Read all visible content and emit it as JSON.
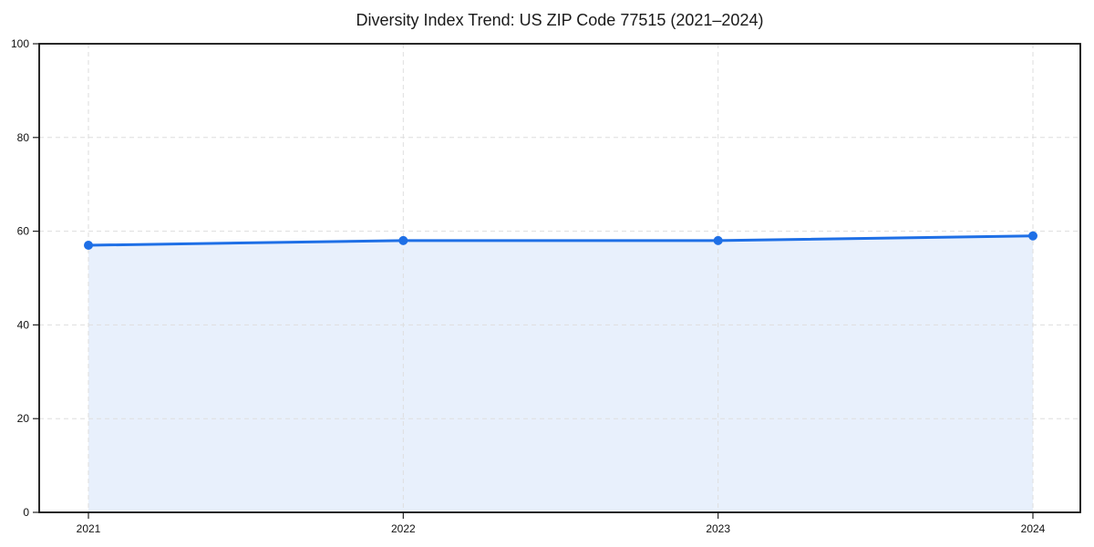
{
  "chart_data": {
    "type": "line",
    "title": "Diversity Index Trend: US ZIP Code 77515 (2021–2024)",
    "categories": [
      "2021",
      "2022",
      "2023",
      "2024"
    ],
    "series": [
      {
        "name": "Diversity Index",
        "values": [
          57,
          58,
          58,
          59
        ]
      }
    ],
    "xlabel": "",
    "ylabel": "",
    "ylim": [
      0,
      100
    ],
    "yticks": [
      0,
      20,
      40,
      60,
      80,
      100
    ],
    "grid": "dashed, both axes",
    "legend": "none",
    "marker": "circle",
    "area_fill": true,
    "colors": {
      "line": "#1e6fe6",
      "fill": "rgba(30,111,230,0.10)",
      "grid": "#dedede",
      "frame": "#111111",
      "text": "#111111"
    }
  }
}
